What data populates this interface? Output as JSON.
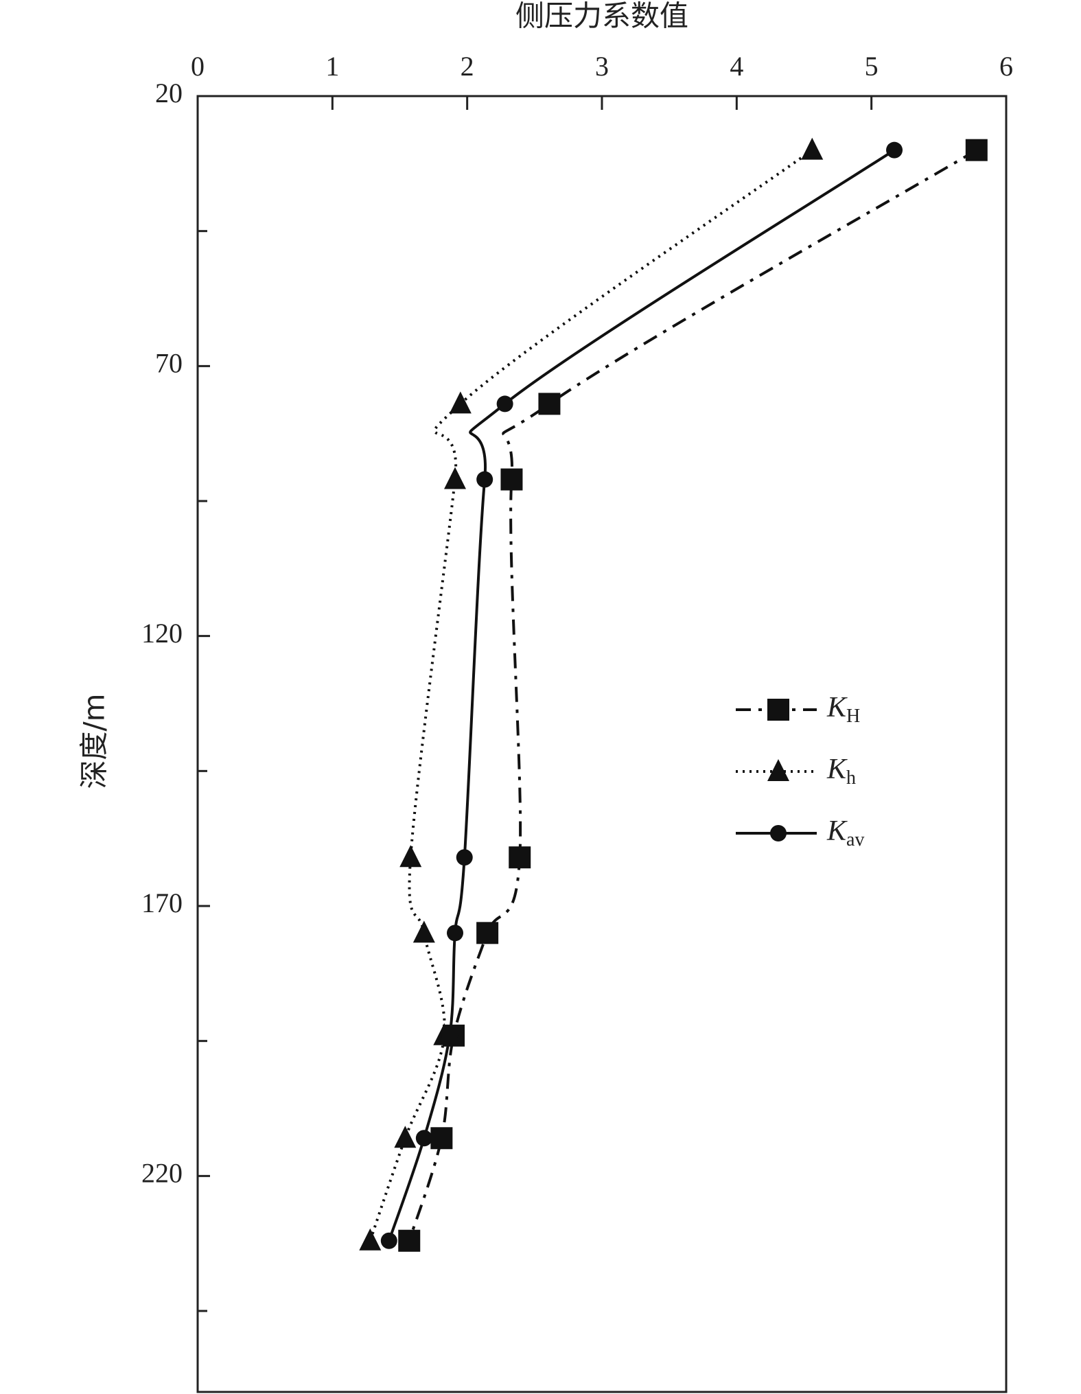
{
  "chart_data": {
    "type": "line",
    "orientation": "vertical",
    "title": "侧压力系数值",
    "ylabel": "深度/m",
    "y": [
      30,
      77,
      91,
      161,
      175,
      194,
      213,
      232
    ],
    "series": [
      {
        "name": "KH",
        "color": "#111111",
        "dash": "dashdot",
        "marker": "square",
        "values": [
          5.78,
          2.61,
          2.33,
          2.39,
          2.15,
          1.9,
          1.81,
          1.57
        ]
      },
      {
        "name": "Kh",
        "color": "#111111",
        "dash": "dotted",
        "marker": "triangle",
        "values": [
          4.56,
          1.95,
          1.91,
          1.58,
          1.68,
          1.83,
          1.54,
          1.28
        ]
      },
      {
        "name": "Kav",
        "color": "#111111",
        "dash": "solid",
        "marker": "circle",
        "values": [
          5.17,
          2.28,
          2.13,
          1.98,
          1.91,
          1.87,
          1.68,
          1.42
        ]
      }
    ],
    "xlim": [
      0,
      6
    ],
    "xticks": [
      0,
      1,
      2,
      3,
      4,
      5,
      6
    ],
    "ylim": [
      20,
      260
    ],
    "yticks": [
      20,
      70,
      120,
      170,
      220
    ],
    "minor_yticks": [
      45,
      95,
      145,
      195,
      245
    ],
    "y_inverted": true,
    "x_axis_position": "top",
    "grid": false,
    "legend": "right"
  }
}
